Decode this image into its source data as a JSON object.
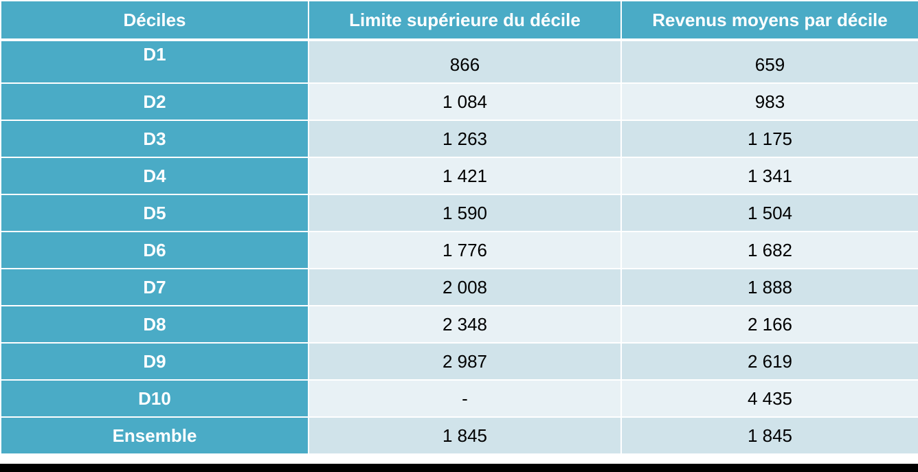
{
  "table": {
    "headers": [
      "Déciles",
      "Limite supérieure du décile",
      "Revenus moyens par décile"
    ],
    "rows": [
      {
        "decile": "D1",
        "limit": "866",
        "avg": "659"
      },
      {
        "decile": "D2",
        "limit": "1 084",
        "avg": "983"
      },
      {
        "decile": "D3",
        "limit": "1 263",
        "avg": "1 175"
      },
      {
        "decile": "D4",
        "limit": "1 421",
        "avg": "1 341"
      },
      {
        "decile": "D5",
        "limit": "1 590",
        "avg": "1 504"
      },
      {
        "decile": "D6",
        "limit": "1 776",
        "avg": "1 682"
      },
      {
        "decile": "D7",
        "limit": "2 008",
        "avg": "1 888"
      },
      {
        "decile": "D8",
        "limit": "2 348",
        "avg": "2 166"
      },
      {
        "decile": "D9",
        "limit": "2 987",
        "avg": "2 619"
      },
      {
        "decile": "D10",
        "limit": "-",
        "avg": "4 435"
      },
      {
        "decile": "Ensemble",
        "limit": "1 845",
        "avg": "1 845"
      }
    ]
  },
  "colors": {
    "header_bg": "#4aabc6",
    "label_bg": "#4aabc6",
    "row_dark": "#d0e3ea",
    "row_light": "#e8f1f5"
  }
}
